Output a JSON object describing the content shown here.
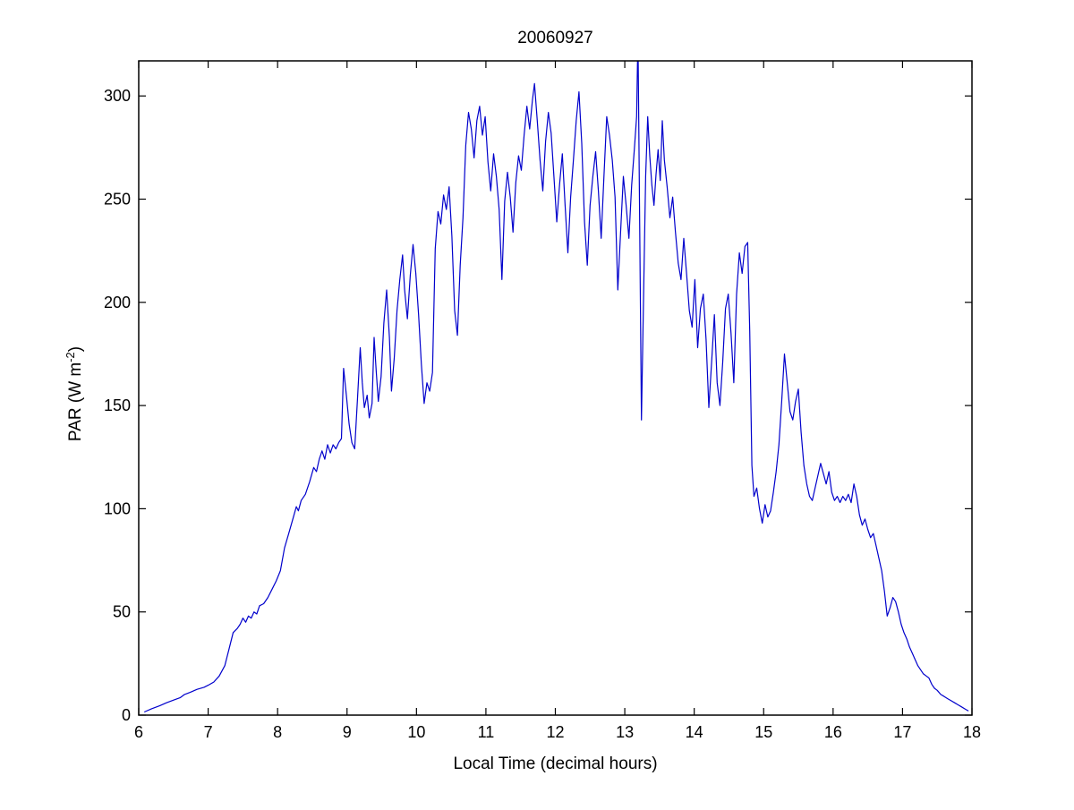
{
  "figure": {
    "background": "#ffffff",
    "axes_color": "#000000"
  },
  "chart_data": {
    "type": "line",
    "title": "20060927",
    "xlabel": "Local Time (decimal hours)",
    "ylabel": "PAR (W m^-2)",
    "ylabel_parts": {
      "pre": "PAR (W m",
      "sup": "-2",
      "post": ")"
    },
    "xlim": [
      6,
      18
    ],
    "ylim": [
      0,
      317
    ],
    "xticks": [
      6,
      7,
      8,
      9,
      10,
      11,
      12,
      13,
      14,
      15,
      16,
      17,
      18
    ],
    "yticks": [
      0,
      50,
      100,
      150,
      200,
      250,
      300
    ],
    "grid": false,
    "legend": null,
    "line_color": "#0000CC",
    "series_name": "PAR",
    "points": [
      [
        6.08,
        1.5
      ],
      [
        6.18,
        3
      ],
      [
        6.3,
        4.5
      ],
      [
        6.4,
        6
      ],
      [
        6.52,
        7.5
      ],
      [
        6.6,
        8.5
      ],
      [
        6.66,
        10
      ],
      [
        6.74,
        11
      ],
      [
        6.84,
        12.5
      ],
      [
        6.94,
        13.5
      ],
      [
        7.0,
        14.5
      ],
      [
        7.08,
        16
      ],
      [
        7.16,
        19
      ],
      [
        7.24,
        24
      ],
      [
        7.3,
        32
      ],
      [
        7.36,
        40
      ],
      [
        7.42,
        42
      ],
      [
        7.46,
        44
      ],
      [
        7.5,
        47
      ],
      [
        7.54,
        45
      ],
      [
        7.58,
        48
      ],
      [
        7.62,
        47
      ],
      [
        7.66,
        50
      ],
      [
        7.7,
        49
      ],
      [
        7.74,
        53
      ],
      [
        7.8,
        54
      ],
      [
        7.86,
        57
      ],
      [
        7.92,
        61
      ],
      [
        7.98,
        65
      ],
      [
        8.04,
        70
      ],
      [
        8.1,
        81
      ],
      [
        8.16,
        88
      ],
      [
        8.22,
        95
      ],
      [
        8.27,
        101
      ],
      [
        8.3,
        99
      ],
      [
        8.34,
        104
      ],
      [
        8.4,
        107
      ],
      [
        8.46,
        113
      ],
      [
        8.52,
        120
      ],
      [
        8.56,
        118
      ],
      [
        8.6,
        124
      ],
      [
        8.64,
        128
      ],
      [
        8.68,
        124
      ],
      [
        8.72,
        131
      ],
      [
        8.76,
        127
      ],
      [
        8.8,
        131
      ],
      [
        8.84,
        129
      ],
      [
        8.88,
        132
      ],
      [
        8.92,
        134
      ],
      [
        8.95,
        168
      ],
      [
        8.99,
        155
      ],
      [
        9.03,
        141
      ],
      [
        9.07,
        132
      ],
      [
        9.11,
        129
      ],
      [
        9.15,
        153
      ],
      [
        9.19,
        178
      ],
      [
        9.22,
        161
      ],
      [
        9.25,
        149
      ],
      [
        9.29,
        155
      ],
      [
        9.32,
        144
      ],
      [
        9.36,
        151
      ],
      [
        9.39,
        183
      ],
      [
        9.42,
        167
      ],
      [
        9.45,
        152
      ],
      [
        9.49,
        164
      ],
      [
        9.53,
        190
      ],
      [
        9.57,
        206
      ],
      [
        9.61,
        183
      ],
      [
        9.64,
        157
      ],
      [
        9.68,
        173
      ],
      [
        9.72,
        196
      ],
      [
        9.76,
        211
      ],
      [
        9.8,
        223
      ],
      [
        9.83,
        206
      ],
      [
        9.87,
        192
      ],
      [
        9.91,
        213
      ],
      [
        9.95,
        228
      ],
      [
        9.99,
        214
      ],
      [
        10.03,
        194
      ],
      [
        10.07,
        170
      ],
      [
        10.11,
        151
      ],
      [
        10.15,
        161
      ],
      [
        10.19,
        157
      ],
      [
        10.23,
        166
      ],
      [
        10.27,
        226
      ],
      [
        10.31,
        244
      ],
      [
        10.35,
        238
      ],
      [
        10.39,
        252
      ],
      [
        10.43,
        245
      ],
      [
        10.47,
        256
      ],
      [
        10.51,
        232
      ],
      [
        10.55,
        196
      ],
      [
        10.59,
        184
      ],
      [
        10.63,
        218
      ],
      [
        10.67,
        241
      ],
      [
        10.71,
        276
      ],
      [
        10.75,
        292
      ],
      [
        10.79,
        284
      ],
      [
        10.83,
        270
      ],
      [
        10.87,
        288
      ],
      [
        10.91,
        295
      ],
      [
        10.95,
        281
      ],
      [
        10.99,
        290
      ],
      [
        11.03,
        268
      ],
      [
        11.07,
        254
      ],
      [
        11.11,
        272
      ],
      [
        11.15,
        261
      ],
      [
        11.19,
        245
      ],
      [
        11.23,
        211
      ],
      [
        11.27,
        249
      ],
      [
        11.31,
        263
      ],
      [
        11.35,
        251
      ],
      [
        11.39,
        234
      ],
      [
        11.43,
        258
      ],
      [
        11.47,
        271
      ],
      [
        11.51,
        264
      ],
      [
        11.55,
        281
      ],
      [
        11.59,
        295
      ],
      [
        11.63,
        284
      ],
      [
        11.67,
        298
      ],
      [
        11.7,
        306
      ],
      [
        11.74,
        288
      ],
      [
        11.78,
        269
      ],
      [
        11.82,
        254
      ],
      [
        11.86,
        278
      ],
      [
        11.9,
        292
      ],
      [
        11.94,
        282
      ],
      [
        11.98,
        261
      ],
      [
        12.02,
        239
      ],
      [
        12.06,
        257
      ],
      [
        12.1,
        272
      ],
      [
        12.14,
        247
      ],
      [
        12.18,
        224
      ],
      [
        12.22,
        251
      ],
      [
        12.26,
        269
      ],
      [
        12.3,
        288
      ],
      [
        12.34,
        302
      ],
      [
        12.38,
        277
      ],
      [
        12.42,
        239
      ],
      [
        12.46,
        218
      ],
      [
        12.5,
        247
      ],
      [
        12.54,
        261
      ],
      [
        12.58,
        273
      ],
      [
        12.62,
        254
      ],
      [
        12.66,
        231
      ],
      [
        12.7,
        261
      ],
      [
        12.74,
        290
      ],
      [
        12.78,
        281
      ],
      [
        12.82,
        269
      ],
      [
        12.86,
        251
      ],
      [
        12.9,
        206
      ],
      [
        12.94,
        234
      ],
      [
        12.98,
        261
      ],
      [
        13.02,
        247
      ],
      [
        13.06,
        231
      ],
      [
        13.1,
        257
      ],
      [
        13.14,
        275
      ],
      [
        13.17,
        290
      ],
      [
        13.19,
        330
      ],
      [
        13.21,
        254
      ],
      [
        13.24,
        143
      ],
      [
        13.27,
        201
      ],
      [
        13.3,
        261
      ],
      [
        13.33,
        290
      ],
      [
        13.36,
        271
      ],
      [
        13.39,
        257
      ],
      [
        13.42,
        247
      ],
      [
        13.45,
        262
      ],
      [
        13.48,
        274
      ],
      [
        13.51,
        259
      ],
      [
        13.54,
        288
      ],
      [
        13.57,
        269
      ],
      [
        13.61,
        256
      ],
      [
        13.65,
        241
      ],
      [
        13.69,
        251
      ],
      [
        13.73,
        234
      ],
      [
        13.77,
        219
      ],
      [
        13.81,
        211
      ],
      [
        13.85,
        231
      ],
      [
        13.89,
        214
      ],
      [
        13.93,
        196
      ],
      [
        13.97,
        188
      ],
      [
        14.01,
        211
      ],
      [
        14.05,
        178
      ],
      [
        14.09,
        197
      ],
      [
        14.13,
        204
      ],
      [
        14.17,
        182
      ],
      [
        14.21,
        149
      ],
      [
        14.25,
        171
      ],
      [
        14.29,
        194
      ],
      [
        14.33,
        161
      ],
      [
        14.37,
        150
      ],
      [
        14.41,
        171
      ],
      [
        14.45,
        197
      ],
      [
        14.49,
        204
      ],
      [
        14.53,
        185
      ],
      [
        14.57,
        161
      ],
      [
        14.61,
        204
      ],
      [
        14.65,
        224
      ],
      [
        14.69,
        214
      ],
      [
        14.73,
        227
      ],
      [
        14.77,
        229
      ],
      [
        14.8,
        186
      ],
      [
        14.83,
        121
      ],
      [
        14.86,
        106
      ],
      [
        14.9,
        110
      ],
      [
        14.94,
        100
      ],
      [
        14.98,
        93
      ],
      [
        15.02,
        102
      ],
      [
        15.06,
        96
      ],
      [
        15.1,
        99
      ],
      [
        15.14,
        108
      ],
      [
        15.18,
        118
      ],
      [
        15.22,
        131
      ],
      [
        15.26,
        152
      ],
      [
        15.3,
        175
      ],
      [
        15.34,
        161
      ],
      [
        15.38,
        147
      ],
      [
        15.42,
        143
      ],
      [
        15.46,
        152
      ],
      [
        15.5,
        158
      ],
      [
        15.54,
        137
      ],
      [
        15.58,
        121
      ],
      [
        15.62,
        112
      ],
      [
        15.66,
        106
      ],
      [
        15.7,
        104
      ],
      [
        15.74,
        110
      ],
      [
        15.78,
        116
      ],
      [
        15.82,
        122
      ],
      [
        15.86,
        117
      ],
      [
        15.9,
        112
      ],
      [
        15.94,
        118
      ],
      [
        15.98,
        108
      ],
      [
        16.02,
        104
      ],
      [
        16.06,
        106
      ],
      [
        16.1,
        103
      ],
      [
        16.14,
        106
      ],
      [
        16.18,
        104
      ],
      [
        16.22,
        107
      ],
      [
        16.26,
        103
      ],
      [
        16.3,
        112
      ],
      [
        16.34,
        106
      ],
      [
        16.38,
        97
      ],
      [
        16.42,
        92
      ],
      [
        16.46,
        95
      ],
      [
        16.5,
        90
      ],
      [
        16.54,
        86
      ],
      [
        16.58,
        88
      ],
      [
        16.62,
        82
      ],
      [
        16.66,
        76
      ],
      [
        16.7,
        70
      ],
      [
        16.74,
        60
      ],
      [
        16.78,
        48
      ],
      [
        16.82,
        52
      ],
      [
        16.86,
        57
      ],
      [
        16.9,
        55
      ],
      [
        16.94,
        50
      ],
      [
        16.98,
        44
      ],
      [
        17.02,
        40
      ],
      [
        17.06,
        37
      ],
      [
        17.1,
        33
      ],
      [
        17.14,
        30
      ],
      [
        17.18,
        27
      ],
      [
        17.22,
        24
      ],
      [
        17.26,
        22
      ],
      [
        17.3,
        20
      ],
      [
        17.34,
        19
      ],
      [
        17.38,
        18
      ],
      [
        17.42,
        15
      ],
      [
        17.46,
        13
      ],
      [
        17.5,
        12
      ],
      [
        17.55,
        10
      ],
      [
        17.6,
        9
      ],
      [
        17.65,
        8
      ],
      [
        17.7,
        7
      ],
      [
        17.75,
        6
      ],
      [
        17.8,
        5
      ],
      [
        17.85,
        4
      ],
      [
        17.9,
        3
      ],
      [
        17.95,
        2
      ]
    ]
  }
}
